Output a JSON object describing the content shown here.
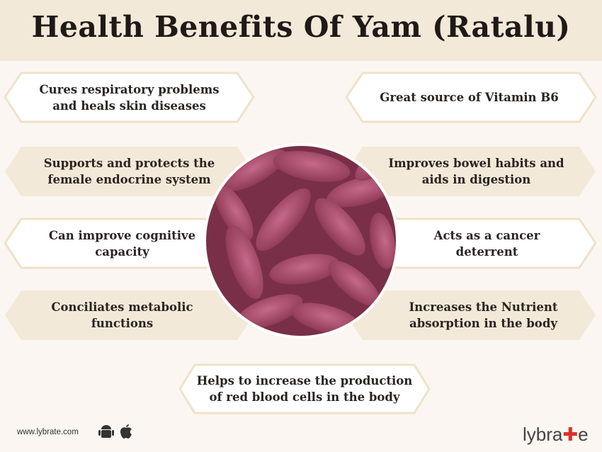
{
  "title": "Health Benefits Of Yam (Ratalu)",
  "benefits": {
    "left": [
      "Cures respiratory problems\nand heals skin diseases",
      "Supports and protects the\nfemale endocrine system",
      "Can improve cognitive\ncapacity",
      "Conciliates metabolic\nfunctions"
    ],
    "right": [
      "Great source of Vitamin B6",
      "Improves bowel habits and\naids in digestion",
      "Acts as a cancer\ndeterrent",
      "Increases the Nutrient\nabsorption in the body"
    ],
    "bottom": "Helps to increase the production\nof red blood cells in the body"
  },
  "footer": {
    "url": "www.lybrate.com",
    "icons": [
      "android-icon",
      "apple-icon"
    ],
    "logo": "lybrate"
  },
  "colors": {
    "title_band": "#f3e9d8",
    "beige_box": "#f3e9d8",
    "border": "#efe2c8",
    "yam": "#b0506e"
  }
}
